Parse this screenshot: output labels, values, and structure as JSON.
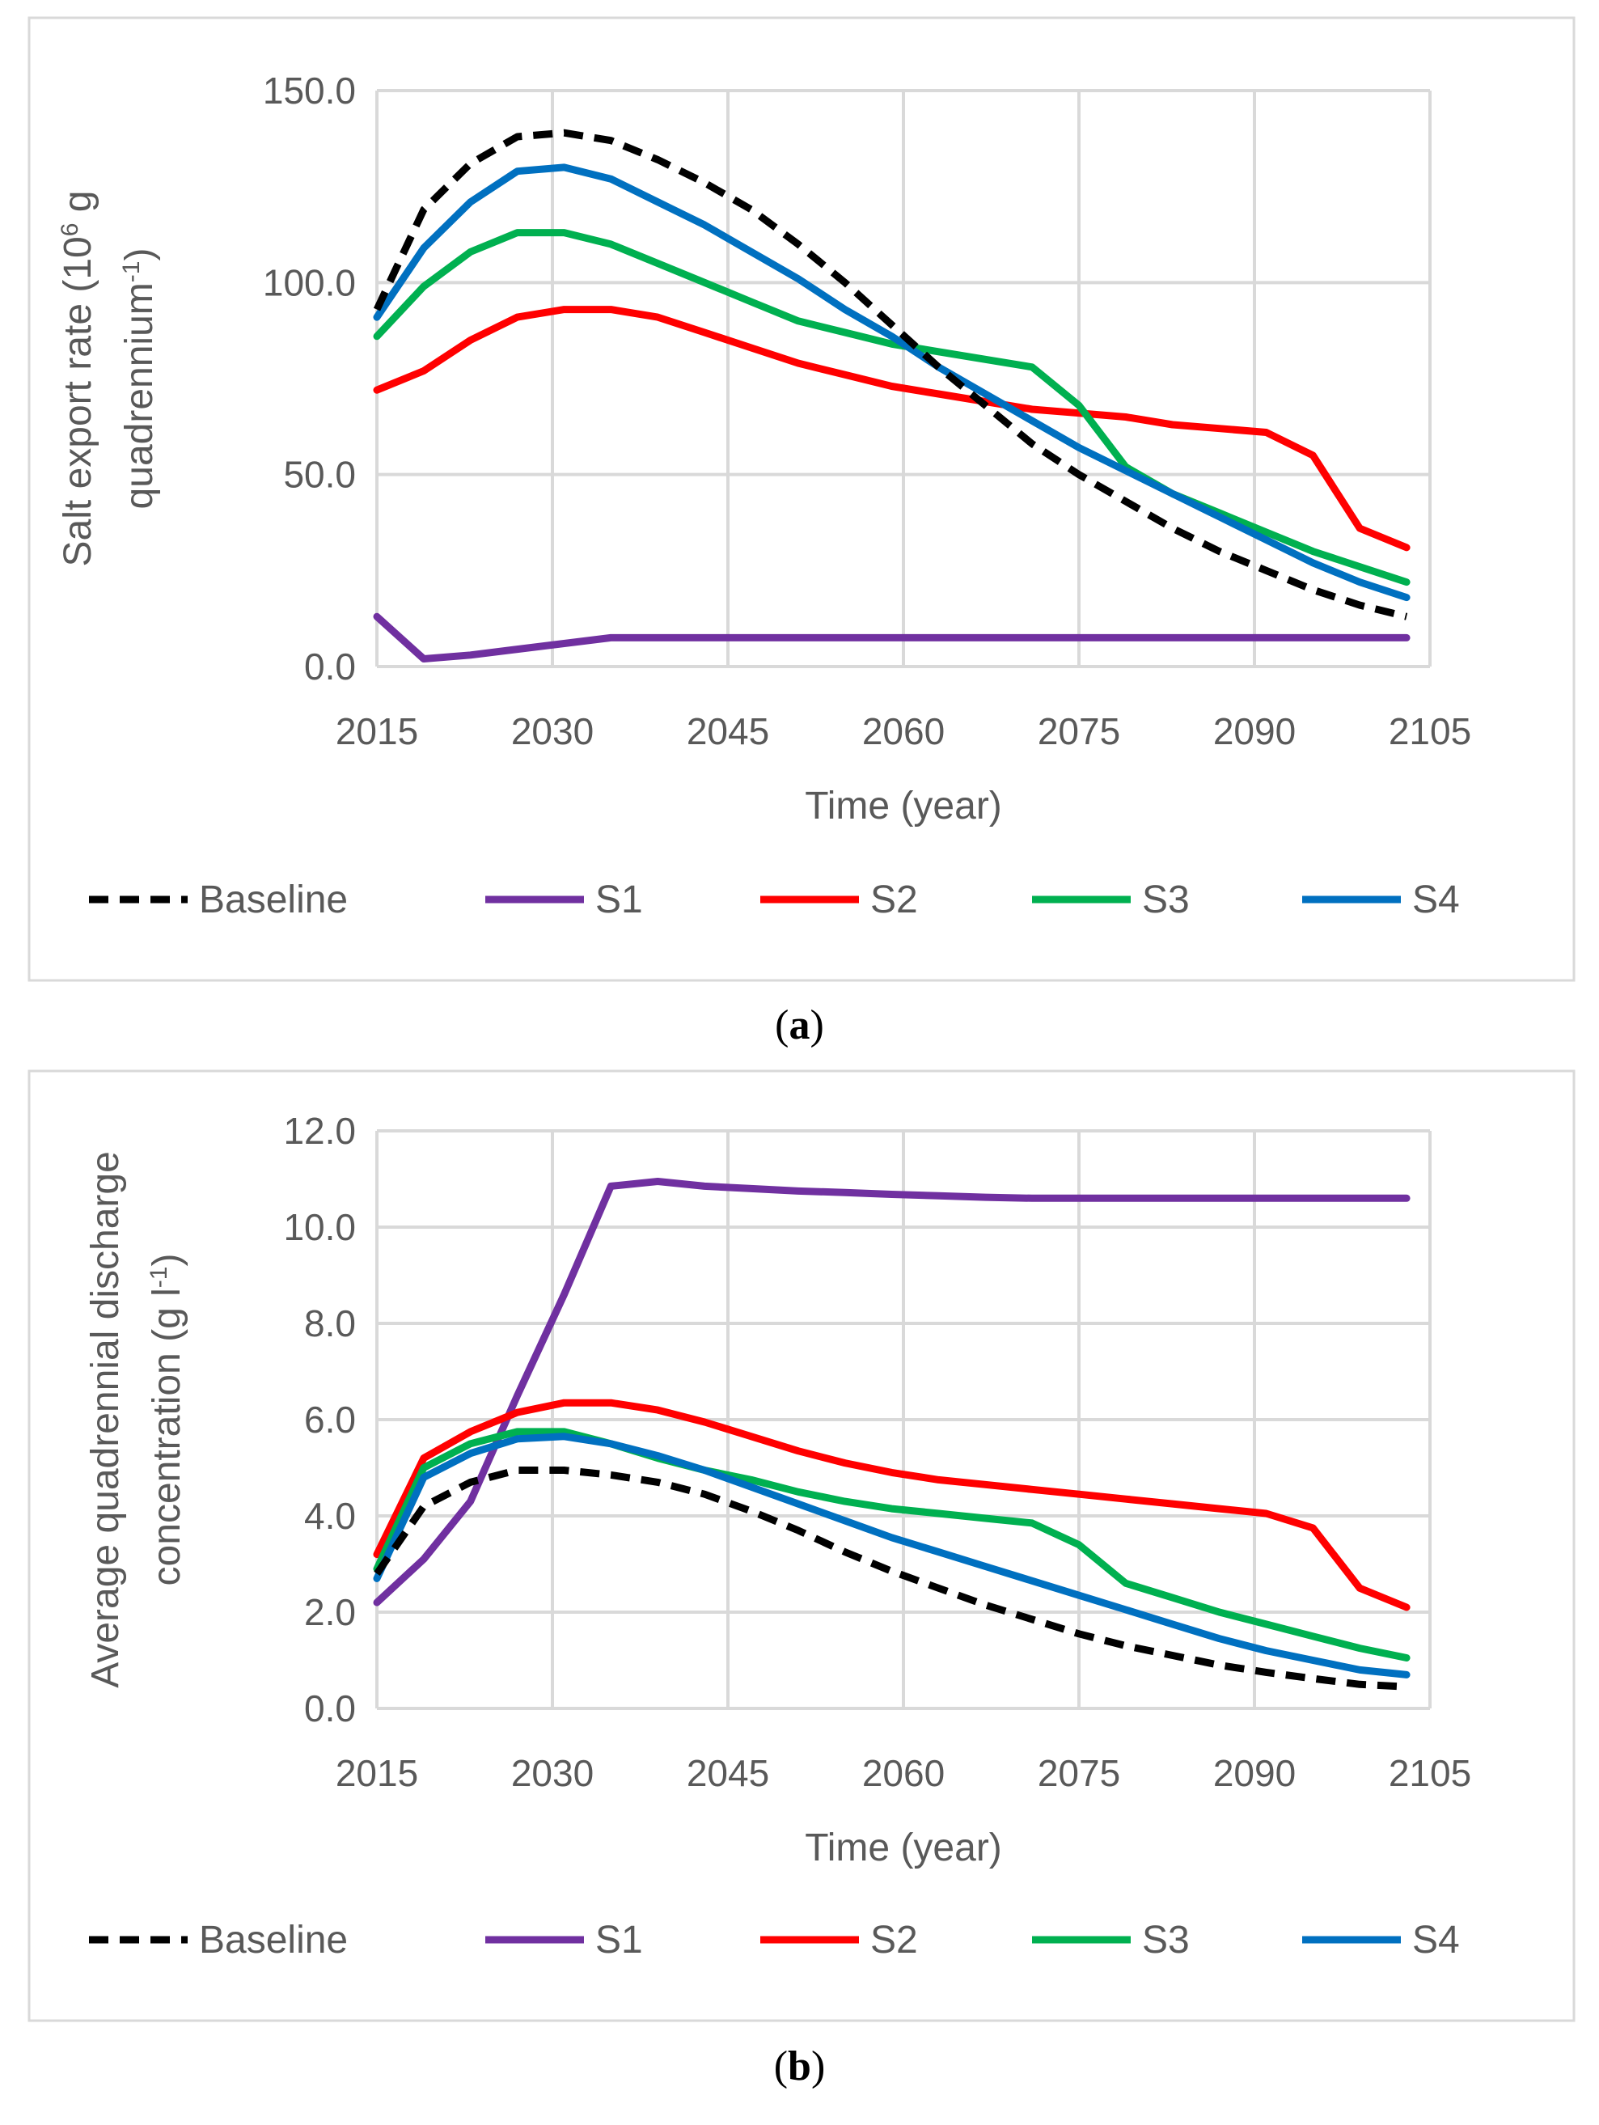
{
  "chart_data": [
    {
      "type": "line",
      "panel_label": "a",
      "title": "",
      "xlabel": "Time (year)",
      "ylabel_line1_prefix": "Salt export rate (10",
      "ylabel_line1_sup": "6",
      "ylabel_line1_suffix": " g",
      "ylabel_line2_prefix": "quadrennium",
      "ylabel_line2_sup": "-1",
      "ylabel_line2_suffix": ")",
      "xlim": [
        2015,
        2105
      ],
      "ylim": [
        0,
        150
      ],
      "xticks": [
        "2015",
        "2030",
        "2045",
        "2060",
        "2075",
        "2090",
        "2105"
      ],
      "yticks": [
        "0.0",
        "50.0",
        "100.0",
        "150.0"
      ],
      "legend_position": "bottom",
      "x": [
        2015,
        2019,
        2023,
        2027,
        2031,
        2035,
        2039,
        2043,
        2047,
        2051,
        2055,
        2059,
        2063,
        2067,
        2071,
        2075,
        2079,
        2083,
        2087,
        2091,
        2095,
        2099,
        2103
      ],
      "series": [
        {
          "name": "Baseline",
          "color": "#000000",
          "dash": true,
          "values": [
            93,
            119,
            131,
            138,
            139,
            137,
            132,
            126,
            119,
            110,
            100,
            89,
            78,
            68,
            58,
            50,
            43,
            36,
            30,
            25,
            20,
            16,
            13
          ]
        },
        {
          "name": "S1",
          "color": "#7030A0",
          "dash": false,
          "values": [
            13,
            2,
            3,
            4.5,
            6,
            7.5,
            7.5,
            7.5,
            7.5,
            7.5,
            7.5,
            7.5,
            7.5,
            7.5,
            7.5,
            7.5,
            7.5,
            7.5,
            7.5,
            7.5,
            7.5,
            7.5,
            7.5
          ]
        },
        {
          "name": "S2",
          "color": "#FF0000",
          "dash": false,
          "values": [
            72,
            77,
            85,
            91,
            93,
            93,
            91,
            87,
            83,
            79,
            76,
            73,
            71,
            69,
            67,
            66,
            65,
            63,
            62,
            61,
            55,
            36,
            31
          ]
        },
        {
          "name": "S3",
          "color": "#00B050",
          "dash": false,
          "values": [
            86,
            99,
            108,
            113,
            113,
            110,
            105,
            100,
            95,
            90,
            87,
            84,
            82,
            80,
            78,
            68,
            52,
            45,
            40,
            35,
            30,
            26,
            22
          ]
        },
        {
          "name": "S4",
          "color": "#0070C0",
          "dash": false,
          "values": [
            91,
            109,
            121,
            129,
            130,
            127,
            121,
            115,
            108,
            101,
            93,
            86,
            78,
            71,
            64,
            57,
            51,
            45,
            39,
            33,
            27,
            22,
            18
          ]
        }
      ]
    },
    {
      "type": "line",
      "panel_label": "b",
      "title": "",
      "xlabel": "Time (year)",
      "ylabel_line1_prefix": "Average quadrennial discharge",
      "ylabel_line1_sup": "",
      "ylabel_line1_suffix": "",
      "ylabel_line2_prefix": "concentration (g l",
      "ylabel_line2_sup": "-1",
      "ylabel_line2_suffix": ")",
      "xlim": [
        2015,
        2105
      ],
      "ylim": [
        0,
        12
      ],
      "xticks": [
        "2015",
        "2030",
        "2045",
        "2060",
        "2075",
        "2090",
        "2105"
      ],
      "yticks": [
        "0.0",
        "2.0",
        "4.0",
        "6.0",
        "8.0",
        "10.0",
        "12.0"
      ],
      "legend_position": "bottom",
      "x": [
        2015,
        2019,
        2023,
        2027,
        2031,
        2035,
        2039,
        2043,
        2047,
        2051,
        2055,
        2059,
        2063,
        2067,
        2071,
        2075,
        2079,
        2083,
        2087,
        2091,
        2095,
        2099,
        2103
      ],
      "series": [
        {
          "name": "Baseline",
          "color": "#000000",
          "dash": true,
          "values": [
            2.8,
            4.2,
            4.7,
            4.95,
            4.95,
            4.85,
            4.7,
            4.45,
            4.1,
            3.7,
            3.25,
            2.85,
            2.5,
            2.15,
            1.85,
            1.55,
            1.3,
            1.1,
            0.9,
            0.75,
            0.62,
            0.5,
            0.45
          ]
        },
        {
          "name": "S1",
          "color": "#7030A0",
          "dash": false,
          "values": [
            2.2,
            3.1,
            4.3,
            6.5,
            8.6,
            10.85,
            10.95,
            10.85,
            10.8,
            10.75,
            10.72,
            10.68,
            10.65,
            10.62,
            10.6,
            10.6,
            10.6,
            10.6,
            10.6,
            10.6,
            10.6,
            10.6,
            10.6
          ]
        },
        {
          "name": "S2",
          "color": "#FF0000",
          "dash": false,
          "values": [
            3.2,
            5.2,
            5.75,
            6.15,
            6.35,
            6.35,
            6.2,
            5.95,
            5.65,
            5.35,
            5.1,
            4.9,
            4.75,
            4.65,
            4.55,
            4.45,
            4.35,
            4.25,
            4.15,
            4.05,
            3.75,
            2.5,
            2.1
          ]
        },
        {
          "name": "S3",
          "color": "#00B050",
          "dash": false,
          "values": [
            2.9,
            5.0,
            5.5,
            5.75,
            5.75,
            5.5,
            5.2,
            4.95,
            4.75,
            4.5,
            4.3,
            4.15,
            4.05,
            3.95,
            3.85,
            3.4,
            2.6,
            2.3,
            2.0,
            1.75,
            1.5,
            1.25,
            1.05
          ]
        },
        {
          "name": "S4",
          "color": "#0070C0",
          "dash": false,
          "values": [
            2.7,
            4.8,
            5.3,
            5.6,
            5.65,
            5.5,
            5.25,
            4.95,
            4.6,
            4.25,
            3.9,
            3.55,
            3.25,
            2.95,
            2.65,
            2.35,
            2.05,
            1.75,
            1.45,
            1.2,
            1.0,
            0.8,
            0.7
          ]
        }
      ]
    }
  ]
}
